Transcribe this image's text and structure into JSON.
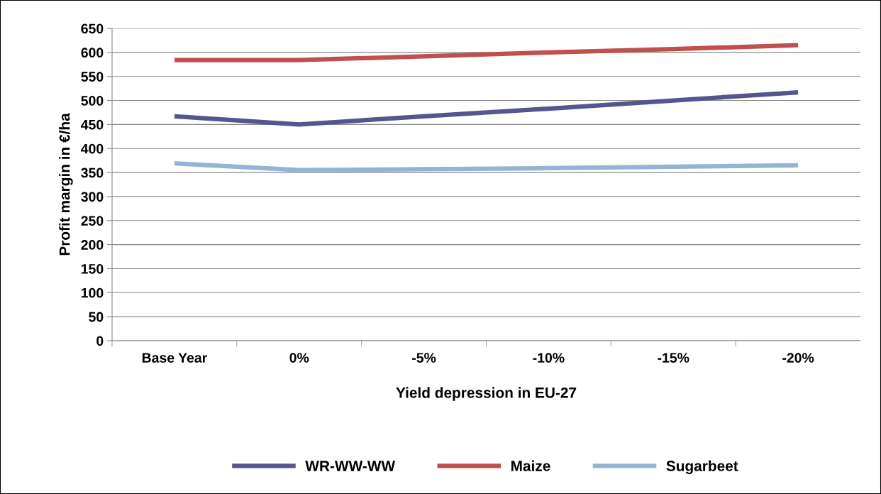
{
  "chart_data": {
    "type": "line",
    "xlabel": "Yield depression in EU-27",
    "ylabel": "Profit margin in €/ha",
    "categories": [
      "Base Year",
      "0%",
      "-5%",
      "-10%",
      "-15%",
      "-20%"
    ],
    "series": [
      {
        "name": "WR-WW-WW",
        "color": "#55558f",
        "values": [
          467,
          450,
          467,
          483,
          500,
          517
        ]
      },
      {
        "name": "Maize",
        "color": "#c0504d",
        "values": [
          584,
          584,
          592,
          600,
          607,
          615
        ]
      },
      {
        "name": "Sugarbeet",
        "color": "#95b3d7",
        "values": [
          369,
          355,
          357,
          359,
          362,
          365
        ]
      }
    ],
    "ylim": [
      0,
      650
    ],
    "yticks": [
      0,
      50,
      100,
      150,
      200,
      250,
      300,
      350,
      400,
      450,
      500,
      550,
      600,
      650
    ],
    "grid": "y",
    "legend": "bottom",
    "marker": "none",
    "line_style": "solid"
  }
}
